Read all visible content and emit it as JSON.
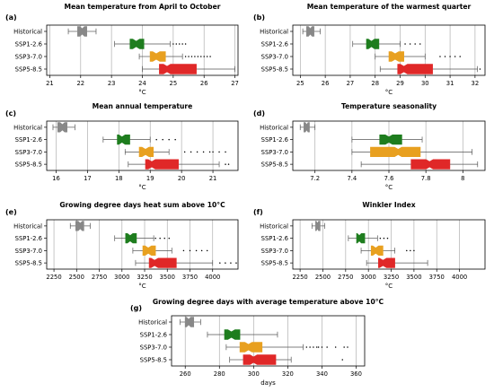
{
  "chart_data": [
    {
      "type": "box",
      "panel_label": "(a)",
      "title": "Mean temperature from April to October",
      "xlabel": "°C",
      "xlim": [
        20.9,
        27.1
      ],
      "xticks": [
        21,
        22,
        23,
        24,
        25,
        26,
        27
      ],
      "grid": "vertical",
      "categories": [
        "Historical",
        "SSP1-2.6",
        "SSP3-7.0",
        "SSP5-8.5"
      ],
      "colors": [
        "#888888",
        "#1e7d1e",
        "#e8a020",
        "#e02828"
      ],
      "boxes": [
        {
          "whislo": 21.6,
          "q1": 21.9,
          "med": 22.05,
          "q3": 22.2,
          "whishi": 22.5,
          "fliers": []
        },
        {
          "whislo": 23.1,
          "q1": 23.6,
          "med": 23.8,
          "q3": 24.05,
          "whishi": 24.9,
          "fliers": [
            25.0,
            25.1,
            25.2,
            25.3,
            25.4
          ]
        },
        {
          "whislo": 23.9,
          "q1": 24.25,
          "med": 24.45,
          "q3": 24.75,
          "whishi": 25.3,
          "fliers": [
            25.4,
            25.5,
            25.6,
            25.7,
            25.8,
            25.9,
            26.0,
            26.1,
            26.2
          ]
        },
        {
          "whislo": 24.0,
          "q1": 24.55,
          "med": 24.8,
          "q3": 25.75,
          "whishi": 27.0,
          "fliers": []
        }
      ]
    },
    {
      "type": "box",
      "panel_label": "(b)",
      "title": "Mean temperature of the warmest quarter",
      "xlabel": "°C",
      "xlim": [
        24.7,
        32.4
      ],
      "xticks": [
        25,
        26,
        27,
        28,
        29,
        30,
        31,
        32
      ],
      "grid": "vertical",
      "categories": [
        "Historical",
        "SSP1-2.6",
        "SSP3-7.0",
        "SSP5-8.5"
      ],
      "colors": [
        "#888888",
        "#1e7d1e",
        "#e8a020",
        "#e02828"
      ],
      "boxes": [
        {
          "whislo": 25.1,
          "q1": 25.25,
          "med": 25.4,
          "q3": 25.55,
          "whishi": 25.8,
          "fliers": []
        },
        {
          "whislo": 27.1,
          "q1": 27.65,
          "med": 27.85,
          "q3": 28.15,
          "whishi": 29.0,
          "fliers": [
            29.2,
            29.4,
            29.6,
            29.8
          ]
        },
        {
          "whislo": 28.0,
          "q1": 28.55,
          "med": 28.8,
          "q3": 29.15,
          "whishi": 30.0,
          "fliers": [
            30.6,
            30.8,
            31.0,
            31.2,
            31.4
          ]
        },
        {
          "whislo": 28.2,
          "q1": 28.9,
          "med": 29.15,
          "q3": 30.3,
          "whishi": 32.1,
          "fliers": [
            32.2
          ]
        }
      ]
    },
    {
      "type": "box",
      "panel_label": "(c)",
      "title": "Mean annual temperature",
      "xlabel": "°C",
      "xlim": [
        15.7,
        21.8
      ],
      "xticks": [
        16,
        17,
        18,
        19,
        20,
        21
      ],
      "grid": "vertical",
      "categories": [
        "Historical",
        "SSP1-2.6",
        "SSP3-7.0",
        "SSP5-8.5"
      ],
      "colors": [
        "#888888",
        "#1e7d1e",
        "#e8a020",
        "#e02828"
      ],
      "boxes": [
        {
          "whislo": 15.9,
          "q1": 16.05,
          "med": 16.2,
          "q3": 16.35,
          "whishi": 16.6,
          "fliers": []
        },
        {
          "whislo": 17.5,
          "q1": 17.95,
          "med": 18.1,
          "q3": 18.35,
          "whishi": 19.0,
          "fliers": [
            19.2,
            19.4,
            19.6,
            19.8
          ]
        },
        {
          "whislo": 18.2,
          "q1": 18.65,
          "med": 18.85,
          "q3": 19.1,
          "whishi": 19.6,
          "fliers": [
            20.1,
            20.3,
            20.5,
            20.7,
            20.9,
            21.0,
            21.2,
            21.4
          ]
        },
        {
          "whislo": 18.3,
          "q1": 18.85,
          "med": 19.05,
          "q3": 19.9,
          "whishi": 21.2,
          "fliers": [
            21.4,
            21.5
          ]
        }
      ]
    },
    {
      "type": "box",
      "panel_label": "(d)",
      "title": "Temperature seasonality",
      "xlabel": "°C",
      "xlim": [
        7.08,
        8.12
      ],
      "xticks": [
        7.2,
        7.4,
        7.6,
        7.8,
        8.0
      ],
      "grid": "vertical",
      "categories": [
        "Historical",
        "SSP1-2.6",
        "SSP3-7.0",
        "SSP5-8.5"
      ],
      "colors": [
        "#888888",
        "#1e7d1e",
        "#e8a020",
        "#e02828"
      ],
      "boxes": [
        {
          "whislo": 7.12,
          "q1": 7.14,
          "med": 7.155,
          "q3": 7.17,
          "whishi": 7.2,
          "fliers": []
        },
        {
          "whislo": 7.4,
          "q1": 7.55,
          "med": 7.6,
          "q3": 7.67,
          "whishi": 7.78,
          "fliers": []
        },
        {
          "whislo": 7.4,
          "q1": 7.5,
          "med": 7.65,
          "q3": 7.77,
          "whishi": 8.05,
          "fliers": []
        },
        {
          "whislo": 7.45,
          "q1": 7.72,
          "med": 7.82,
          "q3": 7.93,
          "whishi": 8.08,
          "fliers": []
        }
      ]
    },
    {
      "type": "box",
      "panel_label": "(e)",
      "title": "Growing degree days heat sum above 10°C",
      "xlabel": "°C",
      "xlim": [
        2170,
        4280
      ],
      "xticks": [
        2250,
        2500,
        2750,
        3000,
        3250,
        3500,
        3750,
        4000
      ],
      "grid": "vertical",
      "categories": [
        "Historical",
        "SSP1-2.6",
        "SSP3-7.0",
        "SSP5-8.5"
      ],
      "colors": [
        "#888888",
        "#1e7d1e",
        "#e8a020",
        "#e02828"
      ],
      "boxes": [
        {
          "whislo": 2430,
          "q1": 2490,
          "med": 2540,
          "q3": 2580,
          "whishi": 2650,
          "fliers": []
        },
        {
          "whislo": 2920,
          "q1": 3040,
          "med": 3090,
          "q3": 3160,
          "whishi": 3350,
          "fliers": [
            3370,
            3420,
            3470,
            3520
          ]
        },
        {
          "whislo": 3120,
          "q1": 3230,
          "med": 3290,
          "q3": 3370,
          "whishi": 3550,
          "fliers": [
            3680,
            3750,
            3820,
            3880,
            3940
          ]
        },
        {
          "whislo": 3150,
          "q1": 3300,
          "med": 3360,
          "q3": 3600,
          "whishi": 4000,
          "fliers": [
            4080,
            4140,
            4200,
            4260
          ]
        }
      ]
    },
    {
      "type": "box",
      "panel_label": "(f)",
      "title": "Winkler Index",
      "xlabel": "°C",
      "xlim": [
        2170,
        4280
      ],
      "xticks": [
        2250,
        2500,
        2750,
        3000,
        3250,
        3500,
        3750,
        4000
      ],
      "grid": "vertical",
      "categories": [
        "Historical",
        "SSP1-2.6",
        "SSP3-7.0",
        "SSP5-8.5"
      ],
      "colors": [
        "#888888",
        "#1e7d1e",
        "#e8a020",
        "#e02828"
      ],
      "boxes": [
        {
          "whislo": 2380,
          "q1": 2420,
          "med": 2440,
          "q3": 2470,
          "whishi": 2520,
          "fliers": []
        },
        {
          "whislo": 2780,
          "q1": 2870,
          "med": 2900,
          "q3": 2960,
          "whishi": 3100,
          "fliers": [
            3130,
            3170,
            3210
          ]
        },
        {
          "whislo": 2920,
          "q1": 3030,
          "med": 3080,
          "q3": 3160,
          "whishi": 3290,
          "fliers": [
            3420,
            3460,
            3500
          ]
        },
        {
          "whislo": 2980,
          "q1": 3110,
          "med": 3160,
          "q3": 3290,
          "whishi": 3650,
          "fliers": []
        }
      ]
    },
    {
      "type": "box",
      "panel_label": "(g)",
      "title": "Growing degree days with average temperature above 10°C",
      "xlabel": "days",
      "xlim": [
        252,
        365
      ],
      "xticks": [
        260,
        280,
        300,
        320,
        340,
        360
      ],
      "grid": "vertical",
      "categories": [
        "Historical",
        "SSP1-2.6",
        "SSP3-7.0",
        "SSP5-8.5"
      ],
      "colors": [
        "#888888",
        "#1e7d1e",
        "#e8a020",
        "#e02828"
      ],
      "boxes": [
        {
          "whislo": 257,
          "q1": 260,
          "med": 262,
          "q3": 265,
          "whishi": 269,
          "fliers": []
        },
        {
          "whislo": 273,
          "q1": 283,
          "med": 287,
          "q3": 292,
          "whishi": 314,
          "fliers": []
        },
        {
          "whislo": 284,
          "q1": 292,
          "med": 297,
          "q3": 305,
          "whishi": 329,
          "fliers": [
            331,
            333,
            335,
            337,
            338,
            340,
            343,
            348,
            353,
            355
          ]
        },
        {
          "whislo": 286,
          "q1": 294,
          "med": 300,
          "q3": 313,
          "whishi": 322,
          "fliers": [
            352
          ]
        }
      ]
    }
  ]
}
